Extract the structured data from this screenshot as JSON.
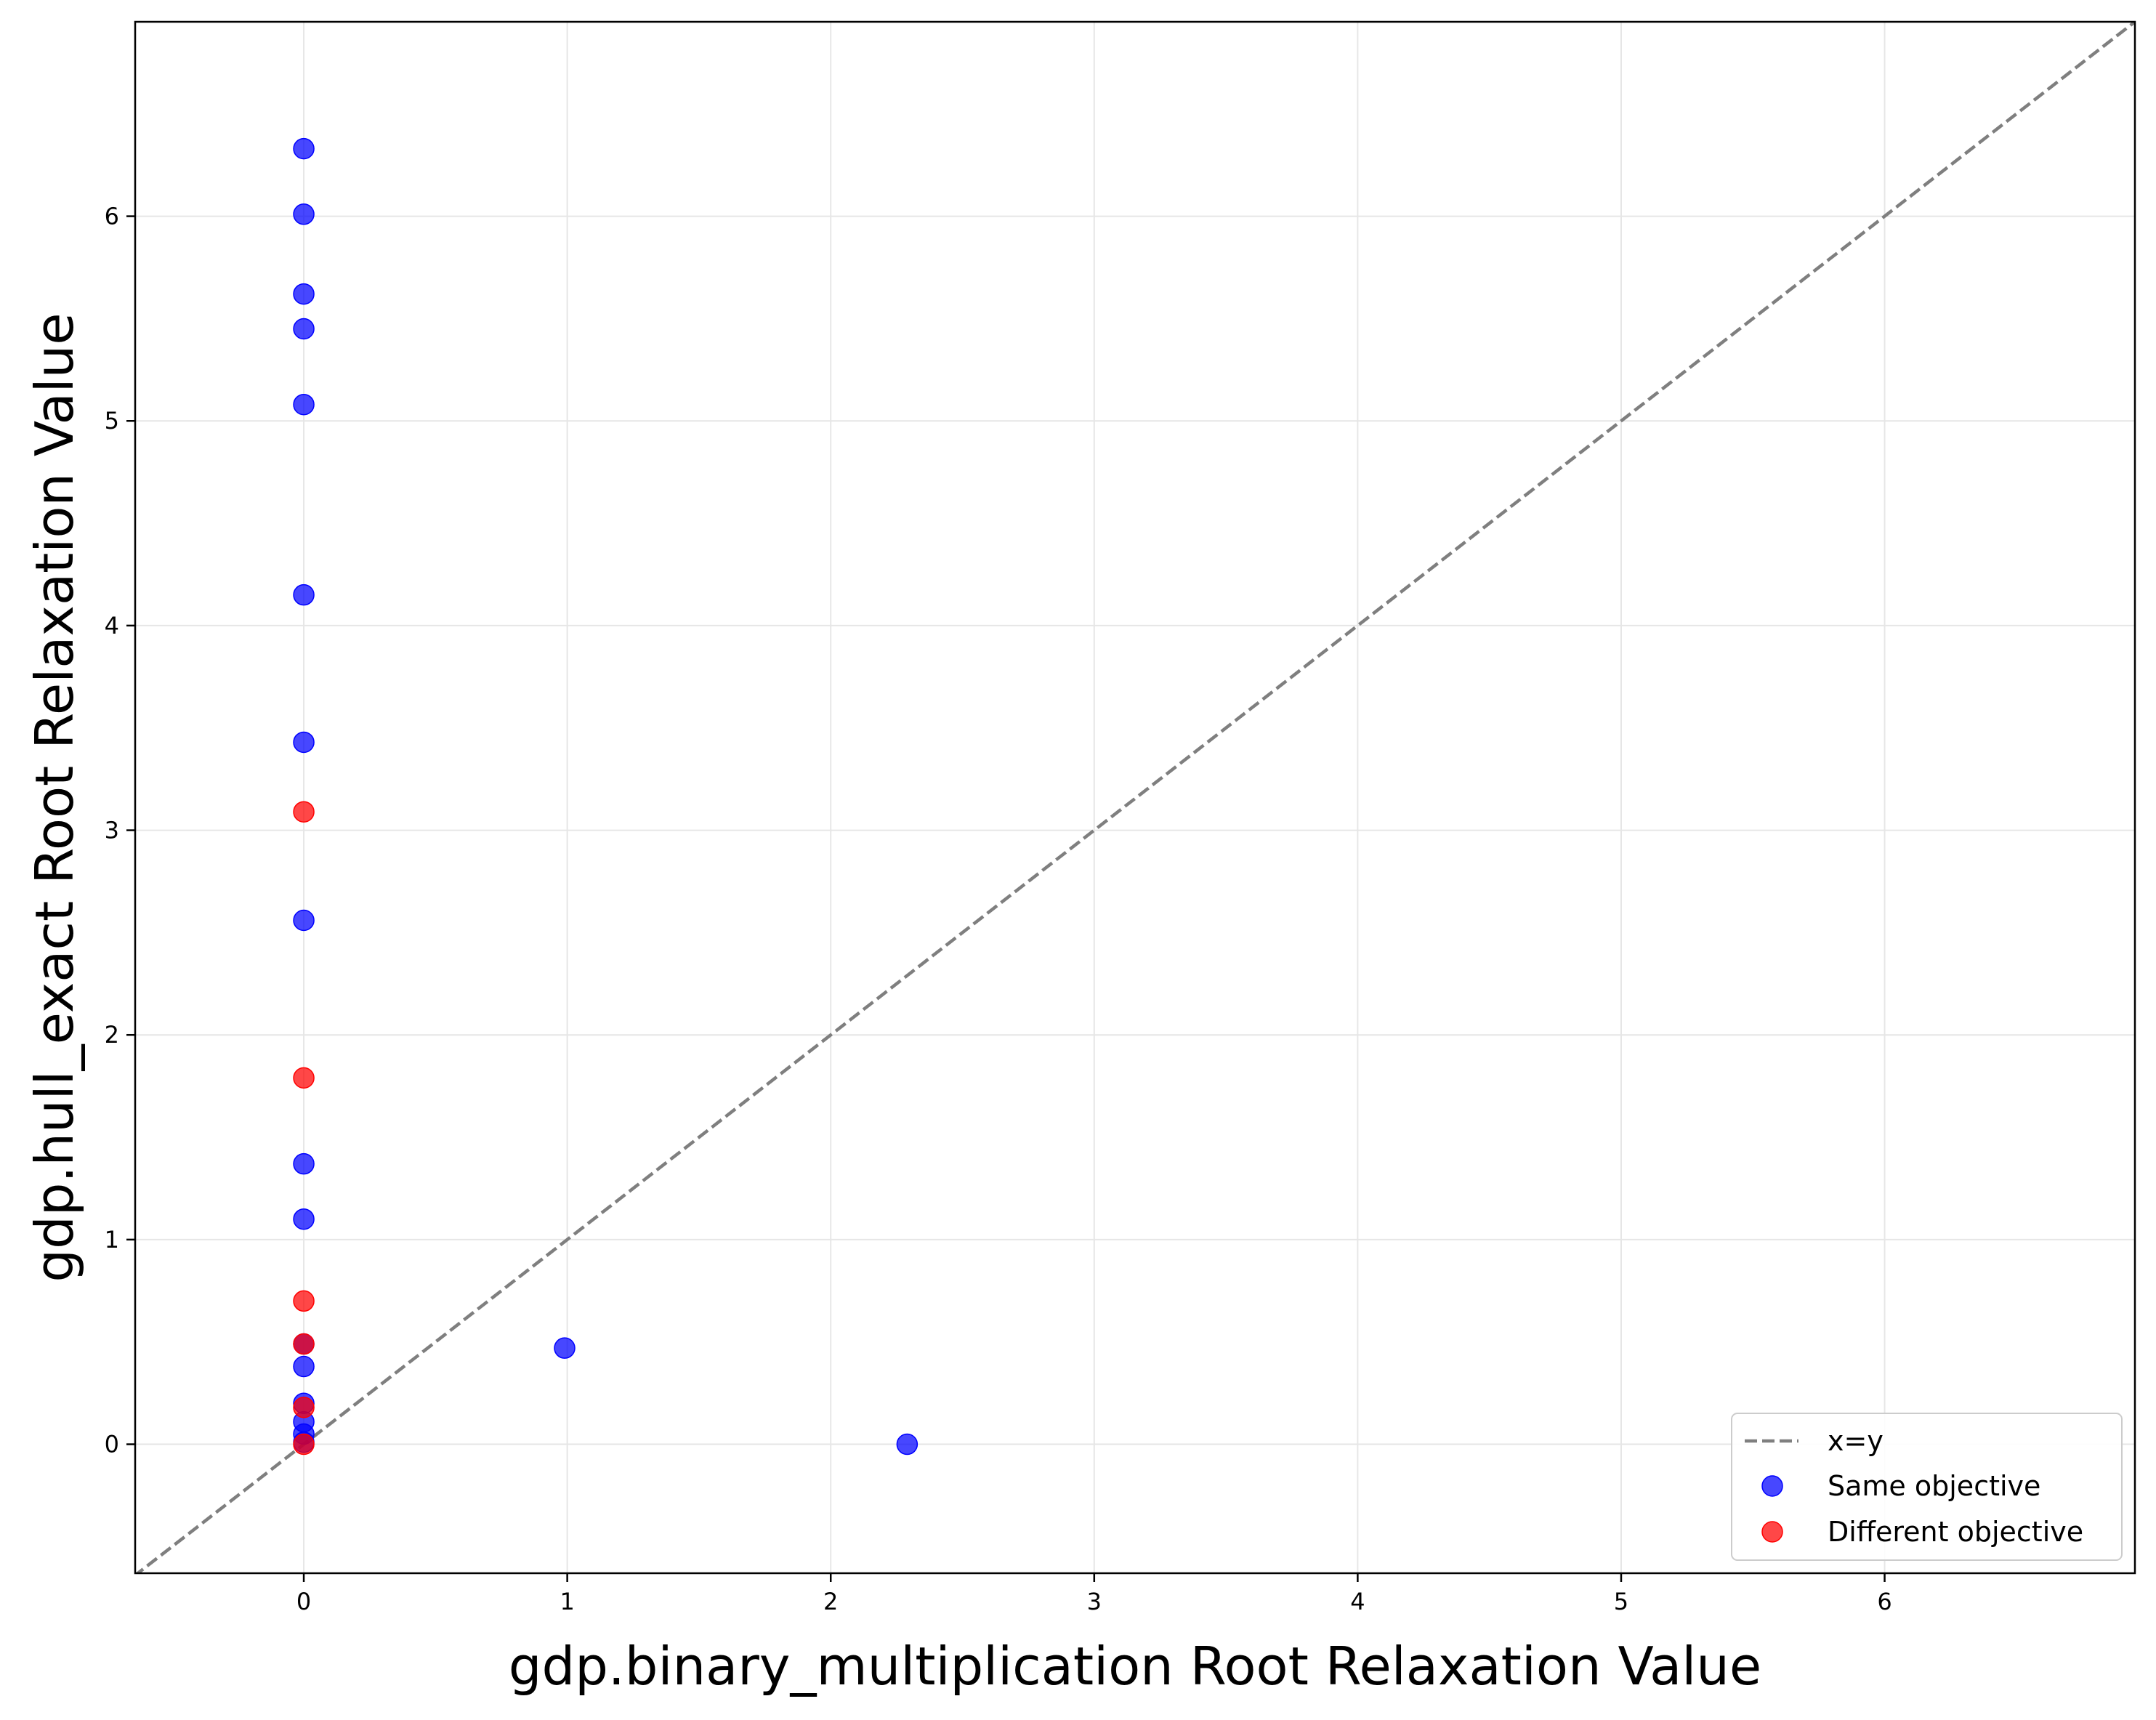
{
  "chart_data": {
    "type": "scatter",
    "xlabel": "gdp.binary_multiplication Root Relaxation Value",
    "ylabel": "gdp.hull_exact Root Relaxation Value",
    "xlim": [
      -0.64,
      6.95
    ],
    "ylim": [
      -0.63,
      6.95
    ],
    "xticks": [
      0,
      1,
      2,
      3,
      4,
      5,
      6
    ],
    "yticks": [
      0,
      1,
      2,
      3,
      4,
      5,
      6
    ],
    "grid": true,
    "legend_position": "lower-right",
    "reference_line": {
      "name": "x=y",
      "style": "dashed",
      "color": "#7f7f7f"
    },
    "series": [
      {
        "name": "Same objective",
        "color": "#0000ff",
        "points": [
          [
            0,
            6.33
          ],
          [
            0,
            6.01
          ],
          [
            0,
            5.62
          ],
          [
            0,
            5.45
          ],
          [
            0,
            5.08
          ],
          [
            0,
            4.15
          ],
          [
            0,
            3.43
          ],
          [
            0,
            2.56
          ],
          [
            0,
            1.37
          ],
          [
            0,
            1.1
          ],
          [
            0,
            0.49
          ],
          [
            0,
            0.38
          ],
          [
            0,
            0.2
          ],
          [
            0,
            0.11
          ],
          [
            0,
            0.05
          ],
          [
            0,
            0.01
          ],
          [
            0.99,
            0.47
          ],
          [
            2.29,
            0.0
          ]
        ]
      },
      {
        "name": "Different objective",
        "color": "#ff0000",
        "points": [
          [
            0,
            3.09
          ],
          [
            0,
            1.79
          ],
          [
            0,
            0.7
          ],
          [
            0,
            0.49
          ],
          [
            0,
            0.18
          ],
          [
            0,
            0.0
          ]
        ]
      }
    ]
  }
}
